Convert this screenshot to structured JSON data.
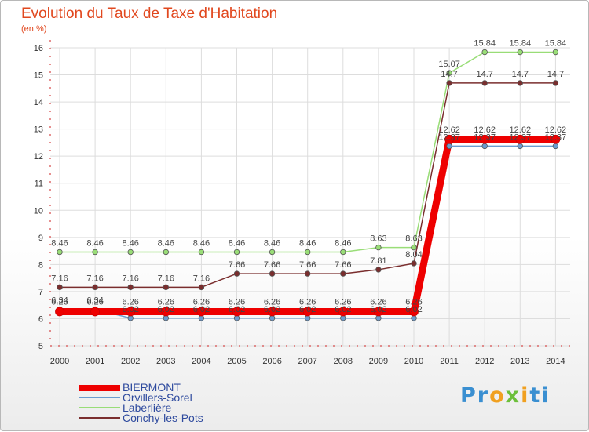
{
  "chart_data": {
    "type": "line",
    "title": "Evolution du Taux de Taxe d'Habitation",
    "subtitle": "(en %)",
    "xlabel": "",
    "ylabel": "",
    "ylim": [
      5,
      16
    ],
    "yticks": [
      "5",
      "6",
      "7",
      "8",
      "9",
      "10",
      "11",
      "12",
      "13",
      "14",
      "15",
      "16"
    ],
    "categories": [
      "2000",
      "2001",
      "2002",
      "2003",
      "2004",
      "2005",
      "2006",
      "2007",
      "2008",
      "2009",
      "2010",
      "2011",
      "2012",
      "2013",
      "2014"
    ],
    "series": [
      {
        "name": "Laberlière",
        "color": "#99dd77",
        "values": [
          8.46,
          8.46,
          8.46,
          8.46,
          8.46,
          8.46,
          8.46,
          8.46,
          8.46,
          8.63,
          8.63,
          15.07,
          15.84,
          15.84,
          15.84
        ],
        "labels": [
          "8.46",
          "8.46",
          "8.46",
          "8.46",
          "8.46",
          "8.46",
          "8.46",
          "8.46",
          "8.46",
          "8.63",
          "8.63",
          "15.07",
          "15.84",
          "15.84",
          "15.84"
        ]
      },
      {
        "name": "Conchy-les-Pots",
        "color": "#7a2e2e",
        "values": [
          7.16,
          7.16,
          7.16,
          7.16,
          7.16,
          7.66,
          7.66,
          7.66,
          7.66,
          7.81,
          8.04,
          14.7,
          14.7,
          14.7,
          14.7
        ],
        "labels": [
          "7.16",
          "7.16",
          "7.16",
          "7.16",
          "7.16",
          "7.66",
          "7.66",
          "7.66",
          "7.66",
          "7.81",
          "8.04",
          "14.7",
          "14.7",
          "14.7",
          "14.7"
        ]
      },
      {
        "name": "Orvillers-Sorel",
        "color": "#6b9ccf",
        "values": [
          6.34,
          6.34,
          6.02,
          6.02,
          6.02,
          6.02,
          6.02,
          6.02,
          6.02,
          6.02,
          6.02,
          12.37,
          12.37,
          12.37,
          12.37
        ],
        "labels": [
          "6.34",
          "6.34",
          "6.02",
          "6.02",
          "6.02",
          "6.02",
          "6.02",
          "6.02",
          "6.02",
          "6.02",
          "6.02",
          "12.37",
          "12.37",
          "12.37",
          "12.37"
        ]
      },
      {
        "name": "BIERMONT",
        "color": "#ee0000",
        "values": [
          6.26,
          6.26,
          6.26,
          6.26,
          6.26,
          6.26,
          6.26,
          6.26,
          6.26,
          6.26,
          6.26,
          12.62,
          12.62,
          12.62,
          12.62
        ],
        "labels": [
          "6.26",
          "6.26",
          "6.26",
          "6.26",
          "6.26",
          "6.26",
          "6.26",
          "6.26",
          "6.26",
          "6.26",
          "6.26",
          "12.62",
          "12.62",
          "12.62",
          "12.62"
        ]
      }
    ],
    "legend": [
      "BIERMONT",
      "Orvillers-Sorel",
      "Laberlière",
      "Conchy-les-Pots"
    ]
  },
  "legend_items": [
    {
      "label": "BIERMONT",
      "color": "#ee0000"
    },
    {
      "label": "Orvillers-Sorel",
      "color": "#6b9ccf"
    },
    {
      "label": "Laberlière",
      "color": "#99dd77"
    },
    {
      "label": "Conchy-les-Pots",
      "color": "#7a2e2e"
    }
  ],
  "brand": {
    "p1": "Pr",
    "p2": "o",
    "p3": "x",
    "p4": "i",
    "p5": "ti"
  }
}
